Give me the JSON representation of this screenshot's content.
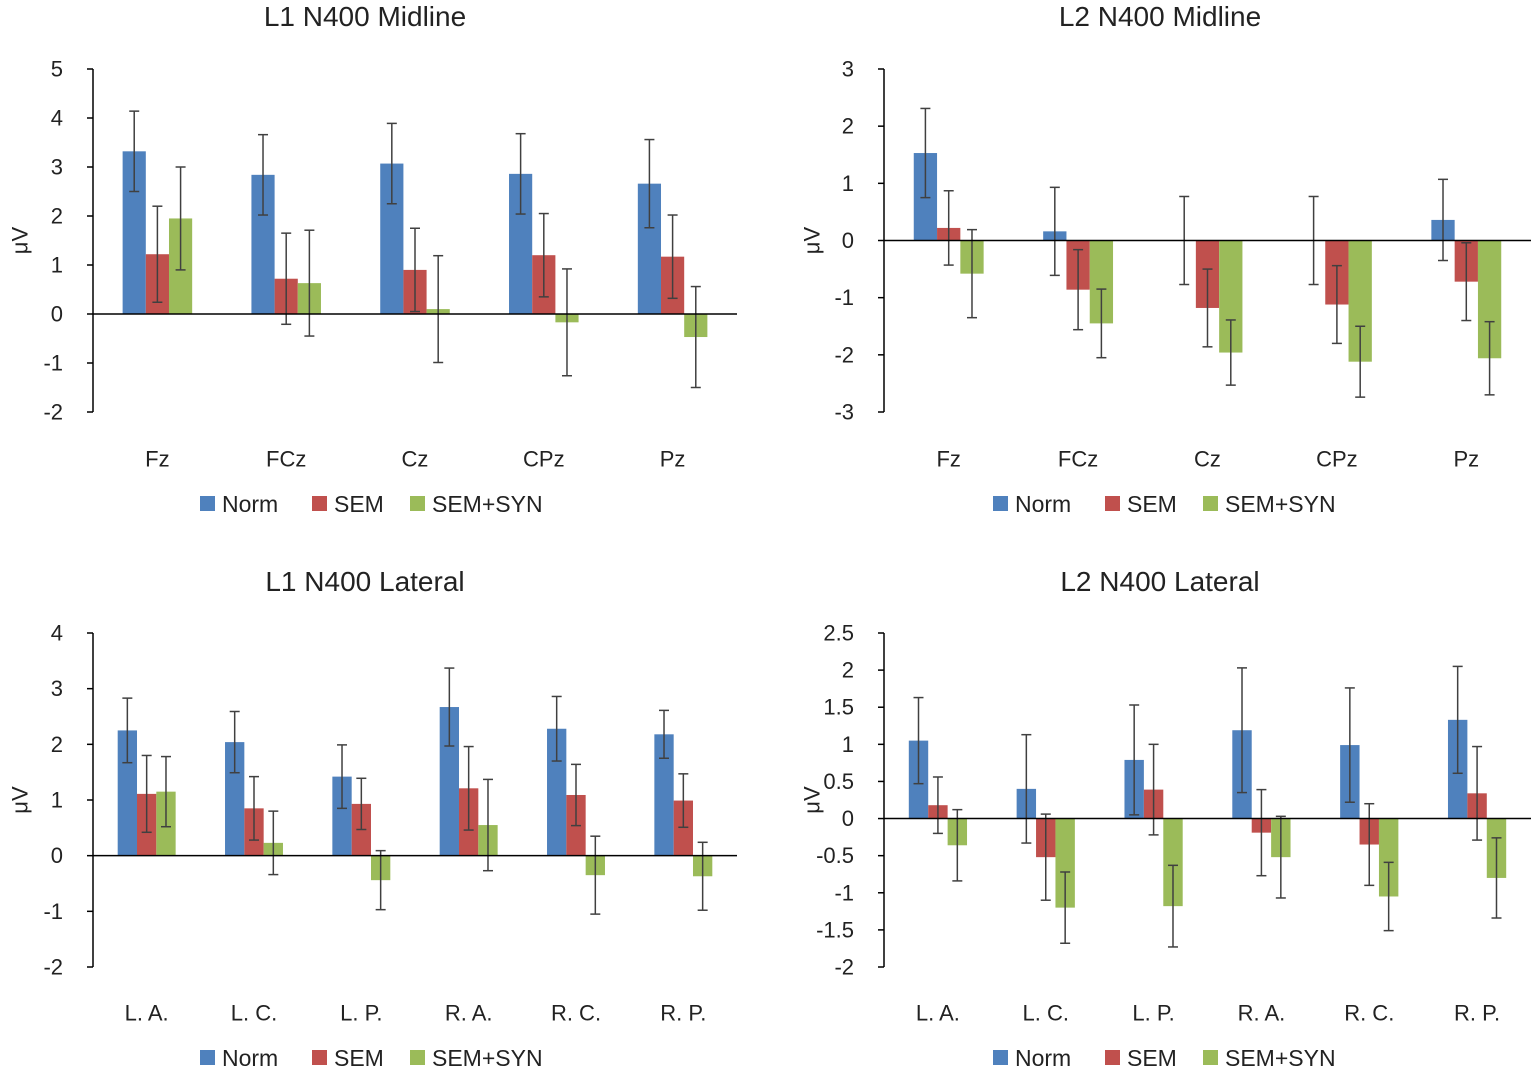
{
  "colors": {
    "norm": "#4F81BD",
    "sem": "#C0504D",
    "semsyn": "#9BBB59",
    "axis": "#000000",
    "error": "#404040"
  },
  "legend": [
    "Norm",
    "SEM",
    "SEM+SYN"
  ],
  "chart_data": [
    {
      "type": "bar",
      "title": "L1 N400 Midline",
      "ylabel": "μV",
      "xlabel": "",
      "ylim": [
        -2,
        5
      ],
      "yticks": [
        "5",
        "4",
        "3",
        "2",
        "1",
        "0",
        "-1",
        "-2"
      ],
      "ytick_values": [
        5,
        4,
        3,
        2,
        1,
        0,
        -1,
        -2
      ],
      "categories": [
        "Fz",
        "FCz",
        "Cz",
        "CPz",
        "Pz"
      ],
      "series": [
        {
          "name": "Norm",
          "values": [
            3.32,
            2.84,
            3.07,
            2.86,
            2.66
          ],
          "errors": [
            0.82,
            0.82,
            0.82,
            0.82,
            0.9
          ]
        },
        {
          "name": "SEM",
          "values": [
            1.22,
            0.72,
            0.9,
            1.2,
            1.17
          ],
          "errors": [
            0.98,
            0.93,
            0.85,
            0.85,
            0.85
          ]
        },
        {
          "name": "SEM+SYN",
          "values": [
            1.95,
            0.63,
            0.1,
            -0.17,
            -0.47
          ],
          "errors": [
            1.05,
            1.08,
            1.09,
            1.09,
            1.03
          ]
        }
      ],
      "legend_position": "bottom"
    },
    {
      "type": "bar",
      "title": "L2 N400 Midline",
      "ylabel": "μV",
      "xlabel": "",
      "ylim": [
        -3,
        3
      ],
      "yticks": [
        "3",
        "2",
        "1",
        "0",
        "-1",
        "-2",
        "-3"
      ],
      "ytick_values": [
        3,
        2,
        1,
        0,
        -1,
        -2,
        -3
      ],
      "categories": [
        "Fz",
        "FCz",
        "Cz",
        "CPz",
        "Pz"
      ],
      "series": [
        {
          "name": "Norm",
          "values": [
            1.53,
            0.16,
            0.0,
            0.0,
            0.36
          ],
          "errors": [
            0.78,
            0.77,
            0.77,
            0.77,
            0.71
          ]
        },
        {
          "name": "SEM",
          "values": [
            0.22,
            -0.86,
            -1.18,
            -1.12,
            -0.72
          ],
          "errors": [
            0.65,
            0.7,
            0.68,
            0.68,
            0.68
          ]
        },
        {
          "name": "SEM+SYN",
          "values": [
            -0.58,
            -1.45,
            -1.96,
            -2.12,
            -2.06
          ],
          "errors": [
            0.77,
            0.6,
            0.57,
            0.62,
            0.64
          ]
        }
      ],
      "legend_position": "bottom"
    },
    {
      "type": "bar",
      "title": "L1 N400 Lateral",
      "ylabel": "μV",
      "xlabel": "",
      "ylim": [
        -2,
        4
      ],
      "yticks": [
        "4",
        "3",
        "2",
        "1",
        "0",
        "-1",
        "-2"
      ],
      "ytick_values": [
        4,
        3,
        2,
        1,
        0,
        -1,
        -2
      ],
      "categories": [
        "L. A.",
        "L. C.",
        "L. P.",
        "R. A.",
        "R. C.",
        "R. P."
      ],
      "series": [
        {
          "name": "Norm",
          "values": [
            2.25,
            2.04,
            1.42,
            2.67,
            2.28,
            2.18
          ],
          "errors": [
            0.58,
            0.55,
            0.57,
            0.7,
            0.58,
            0.43
          ]
        },
        {
          "name": "SEM",
          "values": [
            1.11,
            0.85,
            0.93,
            1.21,
            1.09,
            0.99
          ],
          "errors": [
            0.69,
            0.57,
            0.46,
            0.75,
            0.55,
            0.48
          ]
        },
        {
          "name": "SEM+SYN",
          "values": [
            1.15,
            0.23,
            -0.44,
            0.55,
            -0.35,
            -0.37
          ],
          "errors": [
            0.63,
            0.57,
            0.53,
            0.82,
            0.7,
            0.61
          ]
        }
      ],
      "legend_position": "bottom"
    },
    {
      "type": "bar",
      "title": "L2 N400 Lateral",
      "ylabel": "μV",
      "xlabel": "",
      "ylim": [
        -2,
        2.5
      ],
      "yticks": [
        "2.5",
        "2",
        "1.5",
        "1",
        "0.5",
        "0",
        "-0.5",
        "-1",
        "-1.5",
        "-2"
      ],
      "ytick_values": [
        2.5,
        2,
        1.5,
        1,
        0.5,
        0,
        -0.5,
        -1,
        -1.5,
        -2
      ],
      "categories": [
        "L. A.",
        "L. C.",
        "L. P.",
        "R. A.",
        "R. C.",
        "R. P."
      ],
      "series": [
        {
          "name": "Norm",
          "values": [
            1.05,
            0.4,
            0.79,
            1.19,
            0.99,
            1.33
          ],
          "errors": [
            0.58,
            0.73,
            0.74,
            0.84,
            0.77,
            0.72
          ]
        },
        {
          "name": "SEM",
          "values": [
            0.18,
            -0.52,
            0.39,
            -0.19,
            -0.35,
            0.34
          ],
          "errors": [
            0.38,
            0.58,
            0.61,
            0.58,
            0.55,
            0.63
          ]
        },
        {
          "name": "SEM+SYN",
          "values": [
            -0.36,
            -1.2,
            -1.18,
            -0.52,
            -1.05,
            -0.8
          ],
          "errors": [
            0.48,
            0.48,
            0.55,
            0.55,
            0.46,
            0.54
          ]
        }
      ],
      "legend_position": "bottom"
    }
  ]
}
